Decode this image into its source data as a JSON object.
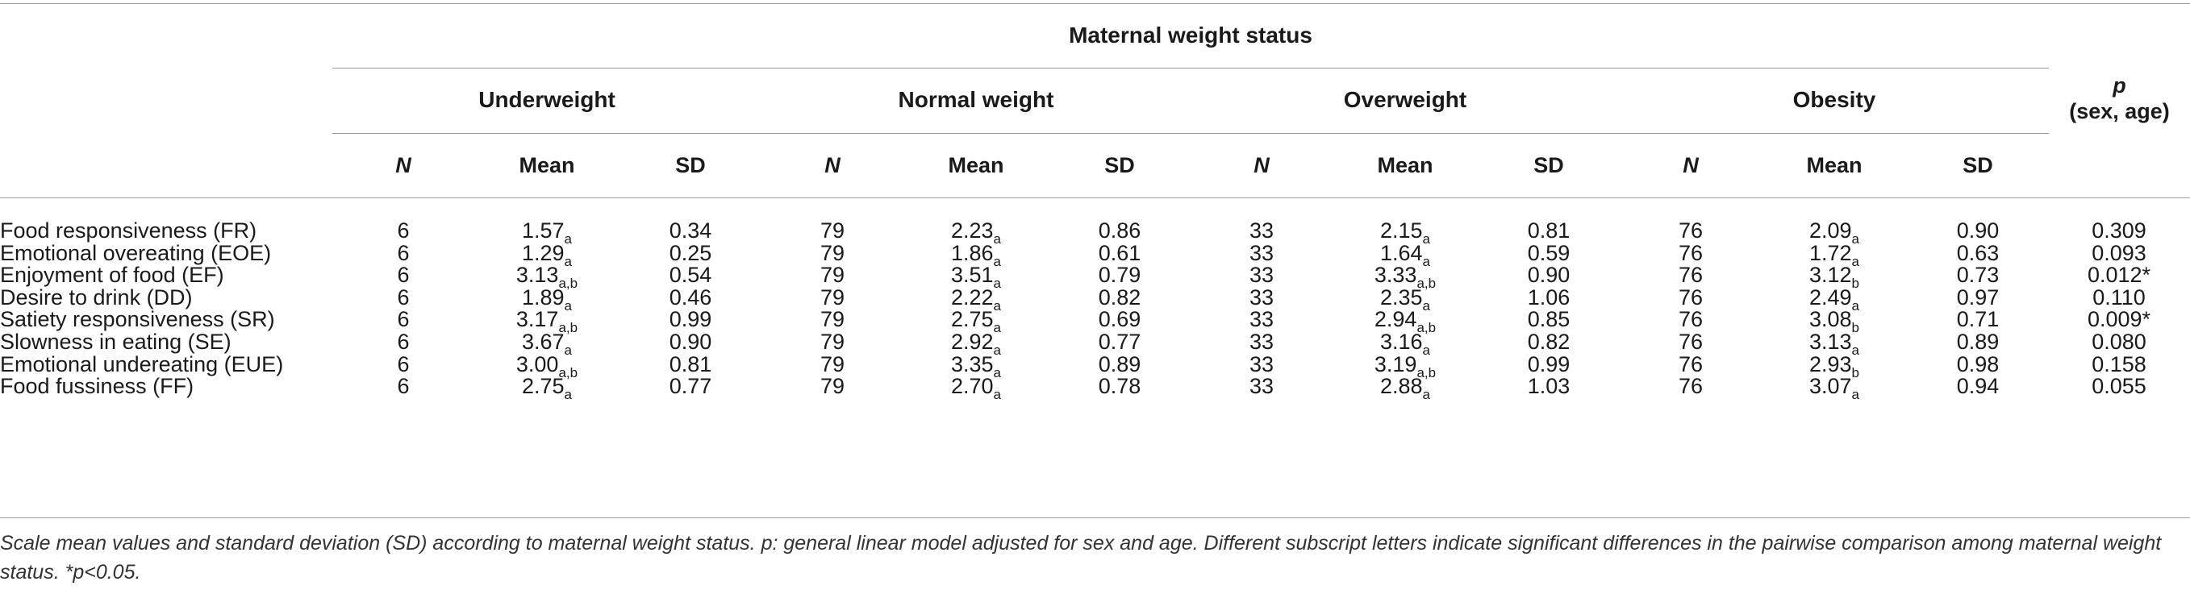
{
  "table": {
    "group_title": "Maternal weight status",
    "groups": [
      "Underweight",
      "Normal weight",
      "Overweight",
      "Obesity"
    ],
    "subcolumns": [
      "N",
      "Mean",
      "SD"
    ],
    "p_header": {
      "p": "p",
      "sub": "(sex, age)"
    },
    "rows": [
      {
        "label": "Food responsiveness (FR)",
        "cells": [
          {
            "n": "6",
            "mean": "1.57",
            "mean_sub": "a",
            "sd": "0.34"
          },
          {
            "n": "79",
            "mean": "2.23",
            "mean_sub": "a",
            "sd": "0.86"
          },
          {
            "n": "33",
            "mean": "2.15",
            "mean_sub": "a",
            "sd": "0.81"
          },
          {
            "n": "76",
            "mean": "2.09",
            "mean_sub": "a",
            "sd": "0.90"
          }
        ],
        "p": "0.309"
      },
      {
        "label": "Emotional overeating (EOE)",
        "cells": [
          {
            "n": "6",
            "mean": "1.29",
            "mean_sub": "a",
            "sd": "0.25"
          },
          {
            "n": "79",
            "mean": "1.86",
            "mean_sub": "a",
            "sd": "0.61"
          },
          {
            "n": "33",
            "mean": "1.64",
            "mean_sub": "a",
            "sd": "0.59"
          },
          {
            "n": "76",
            "mean": "1.72",
            "mean_sub": "a",
            "sd": "0.63"
          }
        ],
        "p": "0.093"
      },
      {
        "label": "Enjoyment of food (EF)",
        "cells": [
          {
            "n": "6",
            "mean": "3.13",
            "mean_sub": "a,b",
            "sd": "0.54"
          },
          {
            "n": "79",
            "mean": "3.51",
            "mean_sub": "a",
            "sd": "0.79"
          },
          {
            "n": "33",
            "mean": "3.33",
            "mean_sub": "a,b",
            "sd": "0.90"
          },
          {
            "n": "76",
            "mean": "3.12",
            "mean_sub": "b",
            "sd": "0.73"
          }
        ],
        "p": "0.012*"
      },
      {
        "label": "Desire to drink (DD)",
        "cells": [
          {
            "n": "6",
            "mean": "1.89",
            "mean_sub": "a",
            "sd": "0.46"
          },
          {
            "n": "79",
            "mean": "2.22",
            "mean_sub": "a",
            "sd": "0.82"
          },
          {
            "n": "33",
            "mean": "2.35",
            "mean_sub": "a",
            "sd": "1.06"
          },
          {
            "n": "76",
            "mean": "2.49",
            "mean_sub": "a",
            "sd": "0.97"
          }
        ],
        "p": "0.110"
      },
      {
        "label": "Satiety responsiveness (SR)",
        "cells": [
          {
            "n": "6",
            "mean": "3.17",
            "mean_sub": "a,b",
            "sd": "0.99"
          },
          {
            "n": "79",
            "mean": "2.75",
            "mean_sub": "a",
            "sd": "0.69"
          },
          {
            "n": "33",
            "mean": "2.94",
            "mean_sub": "a,b",
            "sd": "0.85"
          },
          {
            "n": "76",
            "mean": "3.08",
            "mean_sub": "b",
            "sd": "0.71"
          }
        ],
        "p": "0.009*"
      },
      {
        "label": "Slowness in eating (SE)",
        "cells": [
          {
            "n": "6",
            "mean": "3.67",
            "mean_sub": "a",
            "sd": "0.90"
          },
          {
            "n": "79",
            "mean": "2.92",
            "mean_sub": "a",
            "sd": "0.77"
          },
          {
            "n": "33",
            "mean": "3.16",
            "mean_sub": "a",
            "sd": "0.82"
          },
          {
            "n": "76",
            "mean": "3.13",
            "mean_sub": "a",
            "sd": "0.89"
          }
        ],
        "p": "0.080"
      },
      {
        "label": "Emotional undereating (EUE)",
        "cells": [
          {
            "n": "6",
            "mean": "3.00",
            "mean_sub": "a,b",
            "sd": "0.81"
          },
          {
            "n": "79",
            "mean": "3.35",
            "mean_sub": "a",
            "sd": "0.89"
          },
          {
            "n": "33",
            "mean": "3.19",
            "mean_sub": "a,b",
            "sd": "0.99"
          },
          {
            "n": "76",
            "mean": "2.93",
            "mean_sub": "b",
            "sd": "0.98"
          }
        ],
        "p": "0.158"
      },
      {
        "label": "Food fussiness (FF)",
        "cells": [
          {
            "n": "6",
            "mean": "2.75",
            "mean_sub": "a",
            "sd": "0.77"
          },
          {
            "n": "79",
            "mean": "2.70",
            "mean_sub": "a",
            "sd": "0.78"
          },
          {
            "n": "33",
            "mean": "2.88",
            "mean_sub": "a",
            "sd": "1.03"
          },
          {
            "n": "76",
            "mean": "3.07",
            "mean_sub": "a",
            "sd": "0.94"
          }
        ],
        "p": "0.055"
      }
    ]
  },
  "footnote": "Scale mean values and standard deviation (SD) according to maternal weight status. p: general linear model adjusted for sex and age. Different subscript letters indicate significant differences in the pairwise comparison among maternal weight status.  *p<0.05."
}
